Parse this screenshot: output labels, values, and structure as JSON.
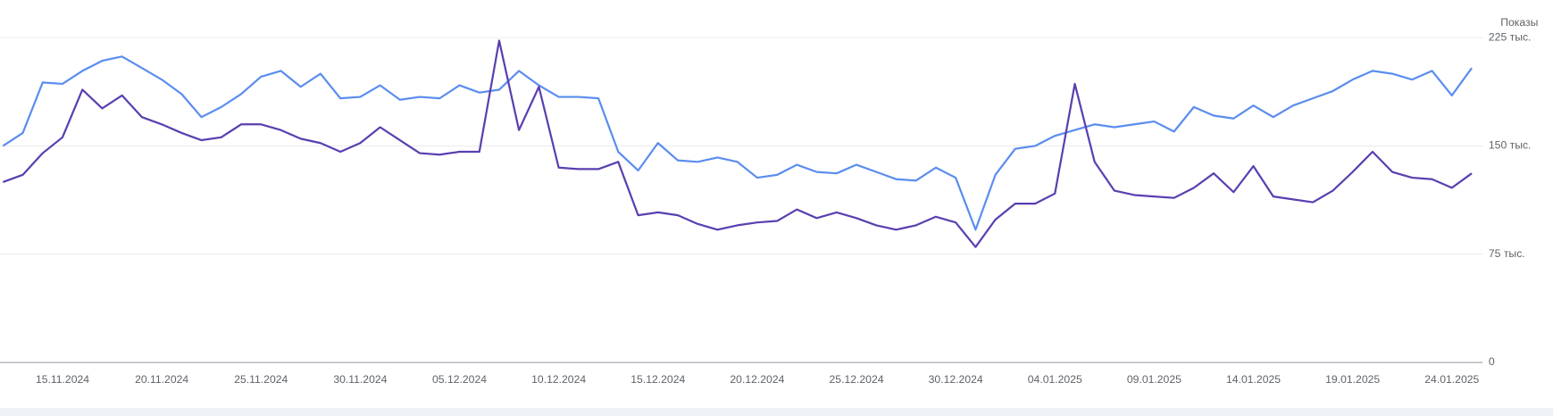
{
  "chart_data": {
    "type": "line",
    "axis_title": "Показы",
    "categories": [
      null,
      null,
      null,
      "15.11.2024",
      null,
      null,
      null,
      null,
      "20.11.2024",
      null,
      null,
      null,
      null,
      "25.11.2024",
      null,
      null,
      null,
      null,
      "30.11.2024",
      null,
      null,
      null,
      null,
      "05.12.2024",
      null,
      null,
      null,
      null,
      "10.12.2024",
      null,
      null,
      null,
      null,
      "15.12.2024",
      null,
      null,
      null,
      null,
      "20.12.2024",
      null,
      null,
      null,
      null,
      "25.12.2024",
      null,
      null,
      null,
      null,
      "30.12.2024",
      null,
      null,
      null,
      null,
      "04.01.2025",
      null,
      null,
      null,
      null,
      "09.01.2025",
      null,
      null,
      null,
      null,
      "14.01.2025",
      null,
      null,
      null,
      null,
      "19.01.2025",
      null,
      null,
      null,
      null,
      "24.01.2025",
      null
    ],
    "series": [
      {
        "color": "#5b8def",
        "values": [
          150,
          159,
          194,
          193,
          202,
          209,
          212,
          204,
          196,
          186,
          170,
          177,
          186,
          198,
          202,
          191,
          200,
          183,
          184,
          192,
          182,
          184,
          183,
          192,
          187,
          189,
          202,
          192,
          184,
          184,
          183,
          146,
          133,
          152,
          140,
          139,
          142,
          139,
          128,
          130,
          137,
          132,
          131,
          137,
          132,
          127,
          126,
          135,
          128,
          92,
          130,
          148,
          150,
          157,
          161,
          165,
          163,
          165,
          167,
          160,
          177,
          171,
          169,
          178,
          170,
          178,
          183,
          188,
          196,
          202,
          200,
          196,
          202,
          185,
          204
        ]
      },
      {
        "color": "#5a3fb0",
        "values": [
          125,
          130,
          145,
          156,
          189,
          176,
          185,
          170,
          165,
          159,
          154,
          156,
          165,
          165,
          161,
          155,
          152,
          146,
          152,
          163,
          154,
          145,
          144,
          146,
          146,
          223,
          161,
          191,
          135,
          134,
          134,
          139,
          102,
          104,
          102,
          96,
          92,
          95,
          97,
          98,
          106,
          100,
          104,
          100,
          95,
          92,
          95,
          101,
          97,
          80,
          99,
          110,
          110,
          117,
          193,
          139,
          119,
          116,
          115,
          114,
          121,
          131,
          118,
          136,
          115,
          113,
          111,
          119,
          132,
          146,
          132,
          128,
          127,
          121,
          131
        ]
      }
    ],
    "ylim": [
      0,
      225
    ],
    "yticks": [
      0,
      {
        "value": 75,
        "label": "75 тыс."
      },
      {
        "value": 150,
        "label": "150 тыс."
      },
      {
        "value": 225,
        "label": "225 тыс."
      }
    ],
    "grid": true
  }
}
